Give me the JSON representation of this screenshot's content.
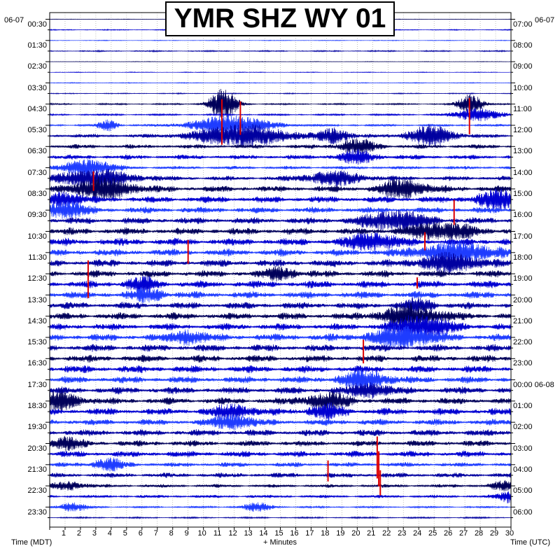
{
  "title": "YMR SHZ WY 01",
  "date_left": "06-07",
  "date_right": "06-07",
  "footer": {
    "time_left": "Time (MDT)",
    "minutes": "+ Minutes",
    "time_right": "Time (UTC)"
  },
  "colors": {
    "trace_colors": [
      "#00005a",
      "#0000d2",
      "#1e3cff",
      "#0000a0"
    ],
    "event_marker": "#dd0000",
    "grid": "#9a9a9a",
    "frame": "#000000"
  },
  "chart_data": {
    "type": "helicorder",
    "title": "YMR SHZ WY 01",
    "xlabel": "+ Minutes",
    "ylabel_left": "Time (MDT)",
    "ylabel_right": "Time (UTC)",
    "x_range": [
      0,
      30
    ],
    "x_ticks": [
      1,
      2,
      3,
      4,
      5,
      6,
      7,
      8,
      9,
      10,
      11,
      12,
      13,
      14,
      15,
      16,
      17,
      18,
      19,
      20,
      21,
      22,
      23,
      24,
      25,
      26,
      27,
      28,
      29,
      30
    ],
    "rows": 48,
    "row_minutes": 30,
    "left_time_labels": [
      "00:30",
      "01:30",
      "02:30",
      "03:30",
      "04:30",
      "05:30",
      "06:30",
      "07:30",
      "08:30",
      "09:30",
      "10:30",
      "11:30",
      "12:30",
      "13:30",
      "14:30",
      "15:30",
      "16:30",
      "17:30",
      "18:30",
      "19:30",
      "20:30",
      "21:30",
      "22:30",
      "23:30"
    ],
    "right_time_labels": [
      "07:00",
      "08:00",
      "09:00",
      "10:00",
      "11:00",
      "12:00",
      "13:00",
      "14:00",
      "15:00",
      "16:00",
      "17:00",
      "18:00",
      "19:00",
      "20:00",
      "21:00",
      "22:00",
      "23:00",
      "00:00 06-08",
      "01:00",
      "02:00",
      "03:00",
      "04:00",
      "05:00",
      "06:00"
    ],
    "noise_level_by_row": [
      0.3,
      0.6,
      0.4,
      0.8,
      0.3,
      0.4,
      0.5,
      0.6,
      1.0,
      1.2,
      1.5,
      2.5,
      2.8,
      3.0,
      2.2,
      3.0,
      4.0,
      4.2,
      4.0,
      4.2,
      4.5,
      4.8,
      4.5,
      4.6,
      4.4,
      4.6,
      4.6,
      4.4,
      4.5,
      4.3,
      4.6,
      4.5,
      4.5,
      4.7,
      4.4,
      4.6,
      4.2,
      4.5,
      4.0,
      4.2,
      3.8,
      4.0,
      3.0,
      3.2,
      2.2,
      2.0,
      1.2,
      1.0
    ],
    "bursts": [
      {
        "row": 8,
        "minute": 11.3,
        "amp": 22,
        "width": 0.9
      },
      {
        "row": 8,
        "minute": 27.4,
        "amp": 14,
        "width": 0.8
      },
      {
        "row": 9,
        "minute": 27.8,
        "amp": 9,
        "width": 1.4
      },
      {
        "row": 10,
        "minute": 11.8,
        "amp": 14,
        "width": 2.5
      },
      {
        "row": 10,
        "minute": 3.8,
        "amp": 8,
        "width": 0.6
      },
      {
        "row": 11,
        "minute": 12.5,
        "amp": 16,
        "width": 3.0
      },
      {
        "row": 11,
        "minute": 18.5,
        "amp": 10,
        "width": 1.0
      },
      {
        "row": 11,
        "minute": 24.8,
        "amp": 14,
        "width": 1.5
      },
      {
        "row": 12,
        "minute": 20.0,
        "amp": 10,
        "width": 1.2
      },
      {
        "row": 13,
        "minute": 20.0,
        "amp": 9,
        "width": 1.2
      },
      {
        "row": 14,
        "minute": 2.5,
        "amp": 12,
        "width": 1.5
      },
      {
        "row": 15,
        "minute": 3.0,
        "amp": 12,
        "width": 2.5
      },
      {
        "row": 15,
        "minute": 18.5,
        "amp": 9,
        "width": 2.0
      },
      {
        "row": 16,
        "minute": 3.5,
        "amp": 14,
        "width": 2.0
      },
      {
        "row": 16,
        "minute": 23.0,
        "amp": 12,
        "width": 1.5
      },
      {
        "row": 17,
        "minute": 29.3,
        "amp": 12,
        "width": 1.5
      },
      {
        "row": 17,
        "minute": 1.0,
        "amp": 10,
        "width": 1.0
      },
      {
        "row": 18,
        "minute": 1.0,
        "amp": 12,
        "width": 1.2
      },
      {
        "row": 19,
        "minute": 22.5,
        "amp": 14,
        "width": 2.0
      },
      {
        "row": 20,
        "minute": 25.5,
        "amp": 12,
        "width": 2.0
      },
      {
        "row": 21,
        "minute": 21.0,
        "amp": 12,
        "width": 1.5
      },
      {
        "row": 22,
        "minute": 26.5,
        "amp": 14,
        "width": 2.5
      },
      {
        "row": 23,
        "minute": 26.0,
        "amp": 12,
        "width": 2.0
      },
      {
        "row": 24,
        "minute": 15.0,
        "amp": 8,
        "width": 1.0
      },
      {
        "row": 25,
        "minute": 6.0,
        "amp": 8,
        "width": 1.0
      },
      {
        "row": 26,
        "minute": 6.5,
        "amp": 8,
        "width": 1.0
      },
      {
        "row": 27,
        "minute": 24.0,
        "amp": 8,
        "width": 1.0
      },
      {
        "row": 28,
        "minute": 23.5,
        "amp": 14,
        "width": 2.0
      },
      {
        "row": 29,
        "minute": 24.2,
        "amp": 16,
        "width": 1.8
      },
      {
        "row": 30,
        "minute": 23.0,
        "amp": 14,
        "width": 2.0
      },
      {
        "row": 30,
        "minute": 9.0,
        "amp": 10,
        "width": 1.0
      },
      {
        "row": 34,
        "minute": 20.5,
        "amp": 12,
        "width": 1.5
      },
      {
        "row": 35,
        "minute": 20.8,
        "amp": 10,
        "width": 1.2
      },
      {
        "row": 36,
        "minute": 0.5,
        "amp": 12,
        "width": 1.5
      },
      {
        "row": 36,
        "minute": 18.0,
        "amp": 10,
        "width": 1.5
      },
      {
        "row": 37,
        "minute": 12.0,
        "amp": 9,
        "width": 1.2
      },
      {
        "row": 37,
        "minute": 18.0,
        "amp": 8,
        "width": 1.2
      },
      {
        "row": 38,
        "minute": 12.0,
        "amp": 10,
        "width": 1.2
      },
      {
        "row": 40,
        "minute": 1.0,
        "amp": 8,
        "width": 1.0
      },
      {
        "row": 42,
        "minute": 3.8,
        "amp": 8,
        "width": 1.0
      },
      {
        "row": 44,
        "minute": 1.2,
        "amp": 6,
        "width": 1.0
      },
      {
        "row": 44,
        "minute": 29.5,
        "amp": 6,
        "width": 0.8
      },
      {
        "row": 45,
        "minute": 29.8,
        "amp": 8,
        "width": 0.6
      },
      {
        "row": 46,
        "minute": 13.5,
        "amp": 6,
        "width": 1.0
      },
      {
        "row": 46,
        "minute": 1.5,
        "amp": 6,
        "width": 1.0
      }
    ],
    "event_marks": [
      {
        "row": 8,
        "minute": 11.2,
        "y_top": -7,
        "y_bottom": 58
      },
      {
        "row": 8,
        "minute": 12.4,
        "y_top": -4,
        "y_bottom": 44
      },
      {
        "row": 9,
        "minute": 27.3,
        "y_top": -24,
        "y_bottom": 28
      },
      {
        "row": 15,
        "minute": 2.85,
        "y_top": -10,
        "y_bottom": 18
      },
      {
        "row": 19,
        "minute": 26.3,
        "y_top": -30,
        "y_bottom": 6
      },
      {
        "row": 21,
        "minute": 24.4,
        "y_top": -14,
        "y_bottom": 12
      },
      {
        "row": 22,
        "minute": 9.0,
        "y_top": -18,
        "y_bottom": 16
      },
      {
        "row": 23,
        "minute": 2.5,
        "y_top": -4,
        "y_bottom": 50
      },
      {
        "row": 25,
        "minute": 23.9,
        "y_top": -10,
        "y_bottom": 6
      },
      {
        "row": 31,
        "minute": 20.4,
        "y_top": -12,
        "y_bottom": 22
      },
      {
        "row": 40,
        "minute": 21.3,
        "y_top": -10,
        "y_bottom": 50
      },
      {
        "row": 41,
        "minute": 21.4,
        "y_top": -4,
        "y_bottom": 46
      },
      {
        "row": 42,
        "minute": 18.1,
        "y_top": -6,
        "y_bottom": 24
      },
      {
        "row": 42,
        "minute": 21.5,
        "y_top": 8,
        "y_bottom": 44
      }
    ]
  }
}
